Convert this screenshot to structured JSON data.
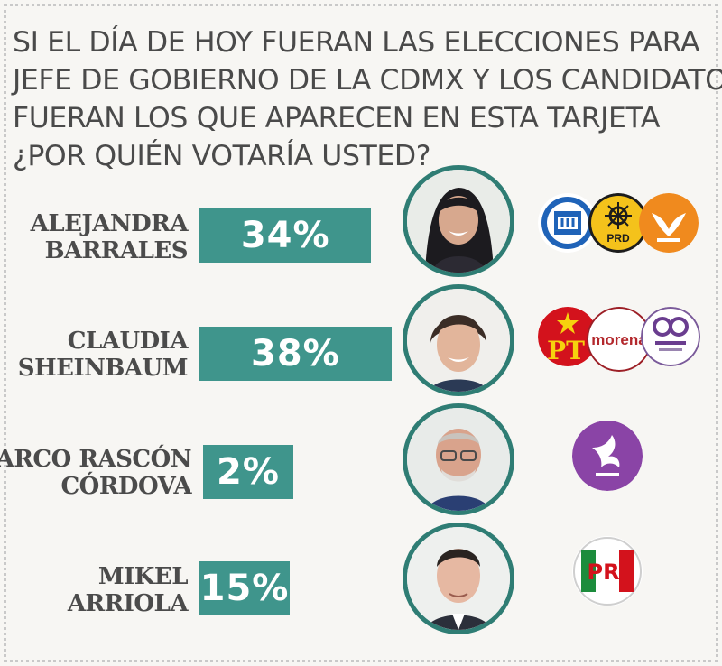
{
  "question_lines": [
    "SI EL DÍA DE HOY FUERAN LAS ELECCIONES PARA",
    "JEFE DE GOBIERNO DE LA CDMX Y LOS CANDIDATOS",
    "FUERAN LOS QUE APARECEN EN ESTA TARJETA",
    "¿POR QUIÉN VOTARÍA USTED?"
  ],
  "chart_data": {
    "type": "bar",
    "orientation": "horizontal",
    "categories": [
      "ALEJANDRA BARRALES",
      "CLAUDIA SHEINBAUM",
      "MARCO RASCÓN CÓRDOVA",
      "MIKEL ARRIOLA"
    ],
    "values": [
      34,
      38,
      2,
      15
    ],
    "value_labels": [
      "34%",
      "38%",
      "2%",
      "15%"
    ],
    "unit": "%",
    "bar_color": "#3f958c"
  },
  "candidates": [
    {
      "name_lines": [
        "ALEJANDRA",
        "BARRALES"
      ],
      "value_label": "34%",
      "photo_icon": "woman-portrait-icon",
      "party_logos": [
        {
          "name": "pan-logo-icon",
          "color": "#1f63b8"
        },
        {
          "name": "prd-logo-icon",
          "color": "#f4c21b",
          "text": "PRD"
        },
        {
          "name": "movimiento-ciudadano-logo-icon",
          "color": "#f08a1e"
        }
      ]
    },
    {
      "name_lines": [
        "CLAUDIA",
        "SHEINBAUM"
      ],
      "value_label": "38%",
      "photo_icon": "woman-portrait-icon",
      "party_logos": [
        {
          "name": "pt-logo-icon",
          "color": "#d3121c",
          "text": "PT"
        },
        {
          "name": "morena-logo-icon",
          "color": "#b3282d",
          "text": "morena"
        },
        {
          "name": "encuentro-social-logo-icon",
          "color": "#6a3d8f"
        }
      ]
    },
    {
      "name_lines": [
        "MARCO RASCÓN",
        "CÓRDOVA"
      ],
      "value_label": "2%",
      "photo_icon": "man-portrait-icon",
      "party_logos": [
        {
          "name": "humanista-logo-icon",
          "color": "#8a44a6"
        }
      ]
    },
    {
      "name_lines": [
        "MIKEL",
        "ARRIOLA"
      ],
      "value_label": "15%",
      "photo_icon": "man-portrait-icon",
      "party_logos": [
        {
          "name": "pri-logo-icon",
          "color": "#d3121c",
          "text": "PRI"
        }
      ]
    }
  ]
}
